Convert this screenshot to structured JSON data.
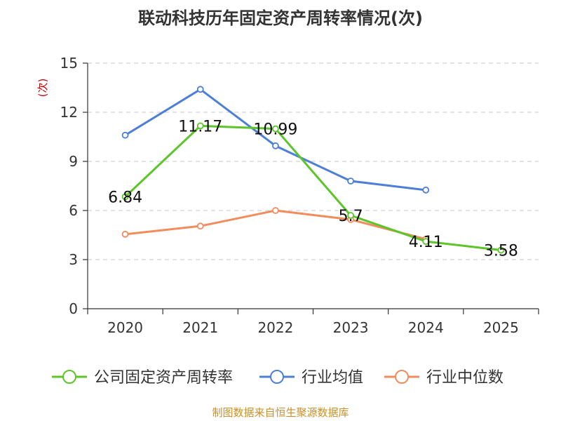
{
  "chart_data": {
    "type": "line",
    "title": "联动科技历年固定资产周转率情况(次)",
    "ylabel": "(次)",
    "xlabel": "",
    "categories": [
      "2020",
      "2021",
      "2022",
      "2023",
      "2024",
      "2025"
    ],
    "ylim": [
      0,
      15
    ],
    "yticks": [
      0,
      3,
      6,
      9,
      12,
      15
    ],
    "grid": true,
    "legend_position": "bottom",
    "series": [
      {
        "name": "公司固定资产周转率",
        "color": "#5cc52a",
        "values": [
          6.84,
          11.17,
          10.99,
          5.7,
          4.11,
          3.58
        ],
        "labels": [
          "6.84",
          "11.17",
          "10.99",
          "5.7",
          "4.11",
          "3.58"
        ]
      },
      {
        "name": "行业均值",
        "color": "#4d7fd9",
        "values": [
          10.6,
          13.4,
          9.95,
          7.8,
          7.25,
          null
        ]
      },
      {
        "name": "行业中位数",
        "color": "#f28c5c",
        "values": [
          4.55,
          5.05,
          6.0,
          5.45,
          4.25,
          null
        ]
      }
    ],
    "source": "制图数据来自恒生聚源数据库"
  }
}
